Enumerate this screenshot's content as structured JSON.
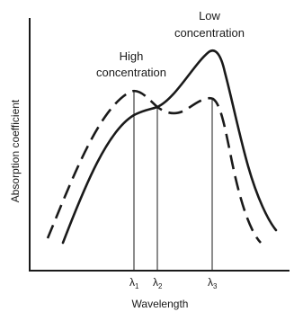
{
  "diagram": {
    "y_axis_label": "Absorption coefficient",
    "x_axis_label": "Wavelength",
    "curves": {
      "low": {
        "label_line1": "Low",
        "label_line2": "concentration",
        "line_style": "solid"
      },
      "high": {
        "label_line1": "High",
        "label_line2": "concentration",
        "line_style": "dashed"
      }
    },
    "markers": [
      {
        "symbol": "λ",
        "subscript": "1"
      },
      {
        "symbol": "λ",
        "subscript": "2"
      },
      {
        "symbol": "λ",
        "subscript": "3"
      }
    ],
    "colors": {
      "ink": "#1a1a1a",
      "background": "#ffffff"
    }
  }
}
